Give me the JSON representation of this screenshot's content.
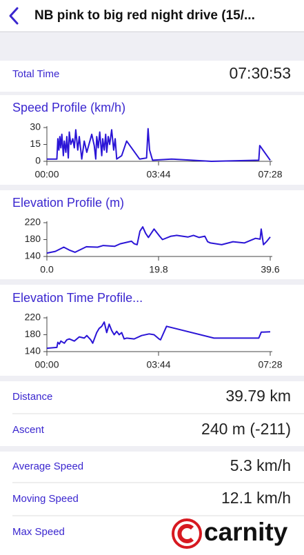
{
  "header": {
    "title": "NB pink to big red night drive  (15/..."
  },
  "total_time": {
    "label": "Total Time",
    "value": "07:30:53"
  },
  "chart_data": [
    {
      "type": "line",
      "title": "Speed Profile (km/h)",
      "color": "#2a14d6",
      "x": [
        0,
        20,
        22,
        24,
        26,
        28,
        30,
        33,
        35,
        38,
        40,
        43,
        45,
        48,
        52,
        55,
        58,
        62,
        65,
        70,
        75,
        80,
        90,
        95,
        98,
        100,
        103,
        106,
        110,
        112,
        115,
        118,
        120,
        123,
        126,
        130,
        134,
        137,
        140,
        150,
        160,
        186,
        200,
        203,
        206,
        212,
        250,
        330,
        425,
        427,
        448
      ],
      "values": [
        2,
        2,
        20,
        10,
        22,
        12,
        24,
        5,
        18,
        8,
        22,
        3,
        26,
        15,
        20,
        12,
        28,
        10,
        22,
        2,
        18,
        8,
        24,
        14,
        2,
        22,
        12,
        26,
        5,
        20,
        10,
        24,
        8,
        22,
        15,
        28,
        10,
        20,
        2,
        5,
        18,
        2,
        3,
        29,
        10,
        1,
        2,
        0,
        1,
        14,
        1
      ],
      "xlim": [
        0,
        448
      ],
      "xticks": [
        {
          "value": 0,
          "label": "00:00"
        },
        {
          "value": 224,
          "label": "03:44"
        },
        {
          "value": 448,
          "label": "07:28"
        }
      ],
      "ylim": [
        0,
        30
      ],
      "yticks": [
        0,
        15,
        30
      ]
    },
    {
      "type": "line",
      "title": "Elevation Profile (m)",
      "color": "#2a14d6",
      "x": [
        0,
        1.5,
        3,
        4,
        5,
        7,
        9,
        10,
        12,
        13,
        15,
        15.5,
        16,
        16.5,
        17,
        17.5,
        18,
        19,
        20,
        20.5,
        22,
        23,
        25,
        26,
        27,
        28,
        28.5,
        29,
        31,
        33,
        35,
        37,
        37.8,
        38,
        38.4,
        39,
        39.6
      ],
      "values": [
        148,
        152,
        162,
        155,
        150,
        163,
        162,
        166,
        164,
        170,
        176,
        170,
        168,
        200,
        210,
        195,
        185,
        205,
        188,
        180,
        188,
        190,
        186,
        190,
        185,
        188,
        175,
        172,
        168,
        175,
        172,
        183,
        181,
        205,
        168,
        176,
        186
      ],
      "xlim": [
        0,
        39.6
      ],
      "xticks": [
        {
          "value": 0,
          "label": "0.0"
        },
        19.8,
        39.6
      ],
      "ylim": [
        140,
        220
      ],
      "yticks": [
        140,
        180,
        220
      ]
    },
    {
      "type": "line",
      "title": "Elevation Time Profile...",
      "color": "#2a14d6",
      "x": [
        0,
        20,
        22,
        25,
        28,
        35,
        40,
        45,
        55,
        65,
        75,
        80,
        88,
        92,
        100,
        105,
        110,
        115,
        120,
        125,
        130,
        135,
        140,
        145,
        150,
        155,
        160,
        175,
        190,
        205,
        215,
        225,
        228,
        240,
        335,
        425,
        430,
        448
      ],
      "values": [
        148,
        150,
        162,
        158,
        165,
        160,
        168,
        170,
        165,
        175,
        172,
        178,
        168,
        160,
        185,
        195,
        200,
        210,
        185,
        205,
        190,
        180,
        188,
        180,
        185,
        170,
        172,
        170,
        178,
        182,
        180,
        170,
        168,
        200,
        172,
        172,
        186,
        187
      ],
      "xlim": [
        0,
        448
      ],
      "xticks": [
        {
          "value": 0,
          "label": "00:00"
        },
        {
          "value": 224,
          "label": "03:44"
        },
        {
          "value": 448,
          "label": "07:28"
        }
      ],
      "ylim": [
        140,
        220
      ],
      "yticks": [
        140,
        180,
        220
      ]
    }
  ],
  "stats": [
    {
      "label": "Distance",
      "value": "39.79 km"
    },
    {
      "label": "Ascent",
      "value": "240 m (-211)"
    },
    {
      "label": "Average Speed",
      "value": "5.3 km/h"
    },
    {
      "label": "Moving Speed",
      "value": "12.1 km/h"
    },
    {
      "label": "Max Speed"
    }
  ],
  "watermark": {
    "text": "carnity"
  }
}
